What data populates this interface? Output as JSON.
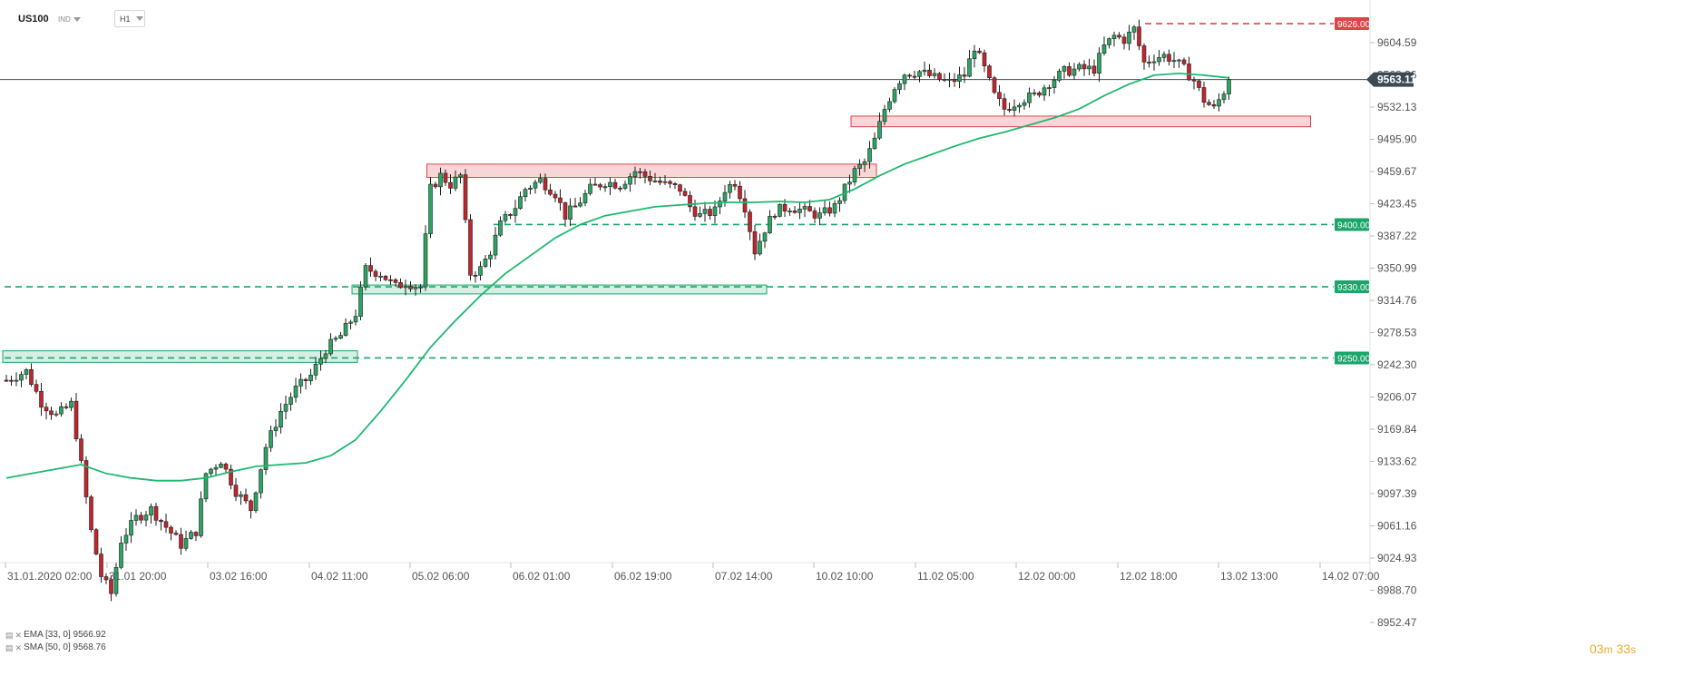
{
  "header": {
    "symbol": "US100",
    "symbol_type": "IND",
    "timeframe": "H1"
  },
  "legend": {
    "ema_label": "EMA [33, 0] 9566.92",
    "sma_label": "SMA [50, 0] 9568.76"
  },
  "countdown": {
    "minutes": "03",
    "minutes_unit": "m",
    "seconds": "33",
    "seconds_unit": "s"
  },
  "colors": {
    "bull": "#2ca462",
    "bear": "#c0262d",
    "sma": "#1fb86f",
    "level_green": "#1aa56a",
    "level_red": "#e04348",
    "current_price_tag": "#3c4a55"
  },
  "chart_data": {
    "type": "candlestick",
    "instrument": "US100",
    "timeframe": "H1",
    "y_range": [
      8940,
      9660
    ],
    "y_ticks": [
      9604.59,
      9568.36,
      9532.13,
      9495.9,
      9459.67,
      9423.45,
      9387.22,
      9350.99,
      9314.76,
      9278.53,
      9242.3,
      9206.07,
      9169.84,
      9133.62,
      9097.39,
      9061.16,
      9024.93,
      8988.7,
      8952.47
    ],
    "x_labels": [
      "31.01.2020 02:00",
      "31.01 20:00",
      "03.02 16:00",
      "04.02 11:00",
      "05.02 06:00",
      "06.02 01:00",
      "06.02 19:00",
      "07.02 14:00",
      "10.02 10:00",
      "11.02 05:00",
      "12.02 00:00",
      "12.02 18:00",
      "13.02 13:00",
      "14.02 07:00"
    ],
    "current_price": 9563.11,
    "price_levels": [
      {
        "price": 9626.0,
        "label": "9626.00",
        "color": "red"
      },
      {
        "price": 9400.0,
        "label": "9400.00",
        "color": "green"
      },
      {
        "price": 9330.0,
        "label": "9330.00",
        "color": "green"
      },
      {
        "price": 9250.0,
        "label": "9250.00",
        "color": "green"
      }
    ],
    "zones": [
      {
        "from_bar": 0,
        "to_bar": 70,
        "low": 9245,
        "high": 9258,
        "color": "green"
      },
      {
        "from_bar": 70,
        "to_bar": 152,
        "low": 9322,
        "high": 9332,
        "color": "green"
      },
      {
        "from_bar": 85,
        "to_bar": 174,
        "low": 9453,
        "high": 9468,
        "color": "red"
      },
      {
        "from_bar": 170,
        "to_bar": 261,
        "low": 9510,
        "high": 9522,
        "color": "red"
      }
    ],
    "waypoints": [
      [
        0,
        9225
      ],
      [
        4,
        9235
      ],
      [
        7,
        9200
      ],
      [
        10,
        9185
      ],
      [
        13,
        9198
      ],
      [
        15,
        9130
      ],
      [
        17,
        9055
      ],
      [
        19,
        9005
      ],
      [
        21,
        8985
      ],
      [
        23,
        9045
      ],
      [
        26,
        9070
      ],
      [
        29,
        9080
      ],
      [
        32,
        9060
      ],
      [
        35,
        9040
      ],
      [
        38,
        9055
      ],
      [
        40,
        9120
      ],
      [
        43,
        9135
      ],
      [
        46,
        9100
      ],
      [
        49,
        9080
      ],
      [
        52,
        9150
      ],
      [
        55,
        9190
      ],
      [
        58,
        9215
      ],
      [
        61,
        9230
      ],
      [
        64,
        9260
      ],
      [
        67,
        9275
      ],
      [
        70,
        9300
      ],
      [
        72,
        9350
      ],
      [
        75,
        9345
      ],
      [
        78,
        9330
      ],
      [
        80,
        9335
      ],
      [
        83,
        9330
      ],
      [
        85,
        9440
      ],
      [
        87,
        9455
      ],
      [
        89,
        9445
      ],
      [
        91,
        9455
      ],
      [
        93,
        9345
      ],
      [
        95,
        9350
      ],
      [
        97,
        9370
      ],
      [
        99,
        9400
      ],
      [
        102,
        9420
      ],
      [
        104,
        9440
      ],
      [
        107,
        9450
      ],
      [
        110,
        9435
      ],
      [
        112,
        9410
      ],
      [
        114,
        9420
      ],
      [
        117,
        9440
      ],
      [
        120,
        9448
      ],
      [
        123,
        9445
      ],
      [
        126,
        9460
      ],
      [
        129,
        9452
      ],
      [
        132,
        9445
      ],
      [
        135,
        9440
      ],
      [
        137,
        9420
      ],
      [
        139,
        9410
      ],
      [
        142,
        9415
      ],
      [
        144,
        9440
      ],
      [
        146,
        9448
      ],
      [
        148,
        9420
      ],
      [
        150,
        9370
      ],
      [
        152,
        9395
      ],
      [
        154,
        9415
      ],
      [
        157,
        9420
      ],
      [
        160,
        9415
      ],
      [
        163,
        9410
      ],
      [
        166,
        9420
      ],
      [
        168,
        9440
      ],
      [
        170,
        9460
      ],
      [
        172,
        9470
      ],
      [
        174,
        9495
      ],
      [
        176,
        9530
      ],
      [
        178,
        9555
      ],
      [
        180,
        9570
      ],
      [
        183,
        9572
      ],
      [
        186,
        9565
      ],
      [
        189,
        9560
      ],
      [
        192,
        9568
      ],
      [
        194,
        9600
      ],
      [
        196,
        9575
      ],
      [
        198,
        9545
      ],
      [
        200,
        9530
      ],
      [
        203,
        9540
      ],
      [
        206,
        9545
      ],
      [
        209,
        9560
      ],
      [
        212,
        9572
      ],
      [
        215,
        9575
      ],
      [
        218,
        9575
      ],
      [
        220,
        9600
      ],
      [
        222,
        9612
      ],
      [
        224,
        9608
      ],
      [
        226,
        9620
      ],
      [
        228,
        9582
      ],
      [
        230,
        9588
      ],
      [
        232,
        9590
      ],
      [
        234,
        9585
      ],
      [
        236,
        9575
      ],
      [
        238,
        9562
      ],
      [
        240,
        9540
      ],
      [
        242,
        9530
      ],
      [
        244,
        9550
      ],
      [
        245,
        9563.11
      ]
    ],
    "sma_points": [
      [
        0,
        9115
      ],
      [
        10,
        9125
      ],
      [
        15,
        9130
      ],
      [
        20,
        9120
      ],
      [
        25,
        9115
      ],
      [
        30,
        9112
      ],
      [
        35,
        9112
      ],
      [
        40,
        9115
      ],
      [
        45,
        9122
      ],
      [
        50,
        9128
      ],
      [
        55,
        9130
      ],
      [
        60,
        9132
      ],
      [
        65,
        9140
      ],
      [
        70,
        9158
      ],
      [
        75,
        9190
      ],
      [
        80,
        9225
      ],
      [
        85,
        9262
      ],
      [
        90,
        9292
      ],
      [
        95,
        9320
      ],
      [
        100,
        9345
      ],
      [
        105,
        9365
      ],
      [
        110,
        9385
      ],
      [
        115,
        9400
      ],
      [
        120,
        9410
      ],
      [
        125,
        9415
      ],
      [
        130,
        9420
      ],
      [
        135,
        9422
      ],
      [
        140,
        9424
      ],
      [
        145,
        9425
      ],
      [
        150,
        9425
      ],
      [
        155,
        9426
      ],
      [
        160,
        9425
      ],
      [
        165,
        9428
      ],
      [
        170,
        9440
      ],
      [
        175,
        9455
      ],
      [
        180,
        9468
      ],
      [
        185,
        9478
      ],
      [
        190,
        9488
      ],
      [
        195,
        9497
      ],
      [
        200,
        9504
      ],
      [
        205,
        9512
      ],
      [
        210,
        9520
      ],
      [
        215,
        9530
      ],
      [
        220,
        9545
      ],
      [
        225,
        9558
      ],
      [
        230,
        9568
      ],
      [
        235,
        9570
      ],
      [
        240,
        9568
      ],
      [
        245,
        9565
      ]
    ]
  }
}
